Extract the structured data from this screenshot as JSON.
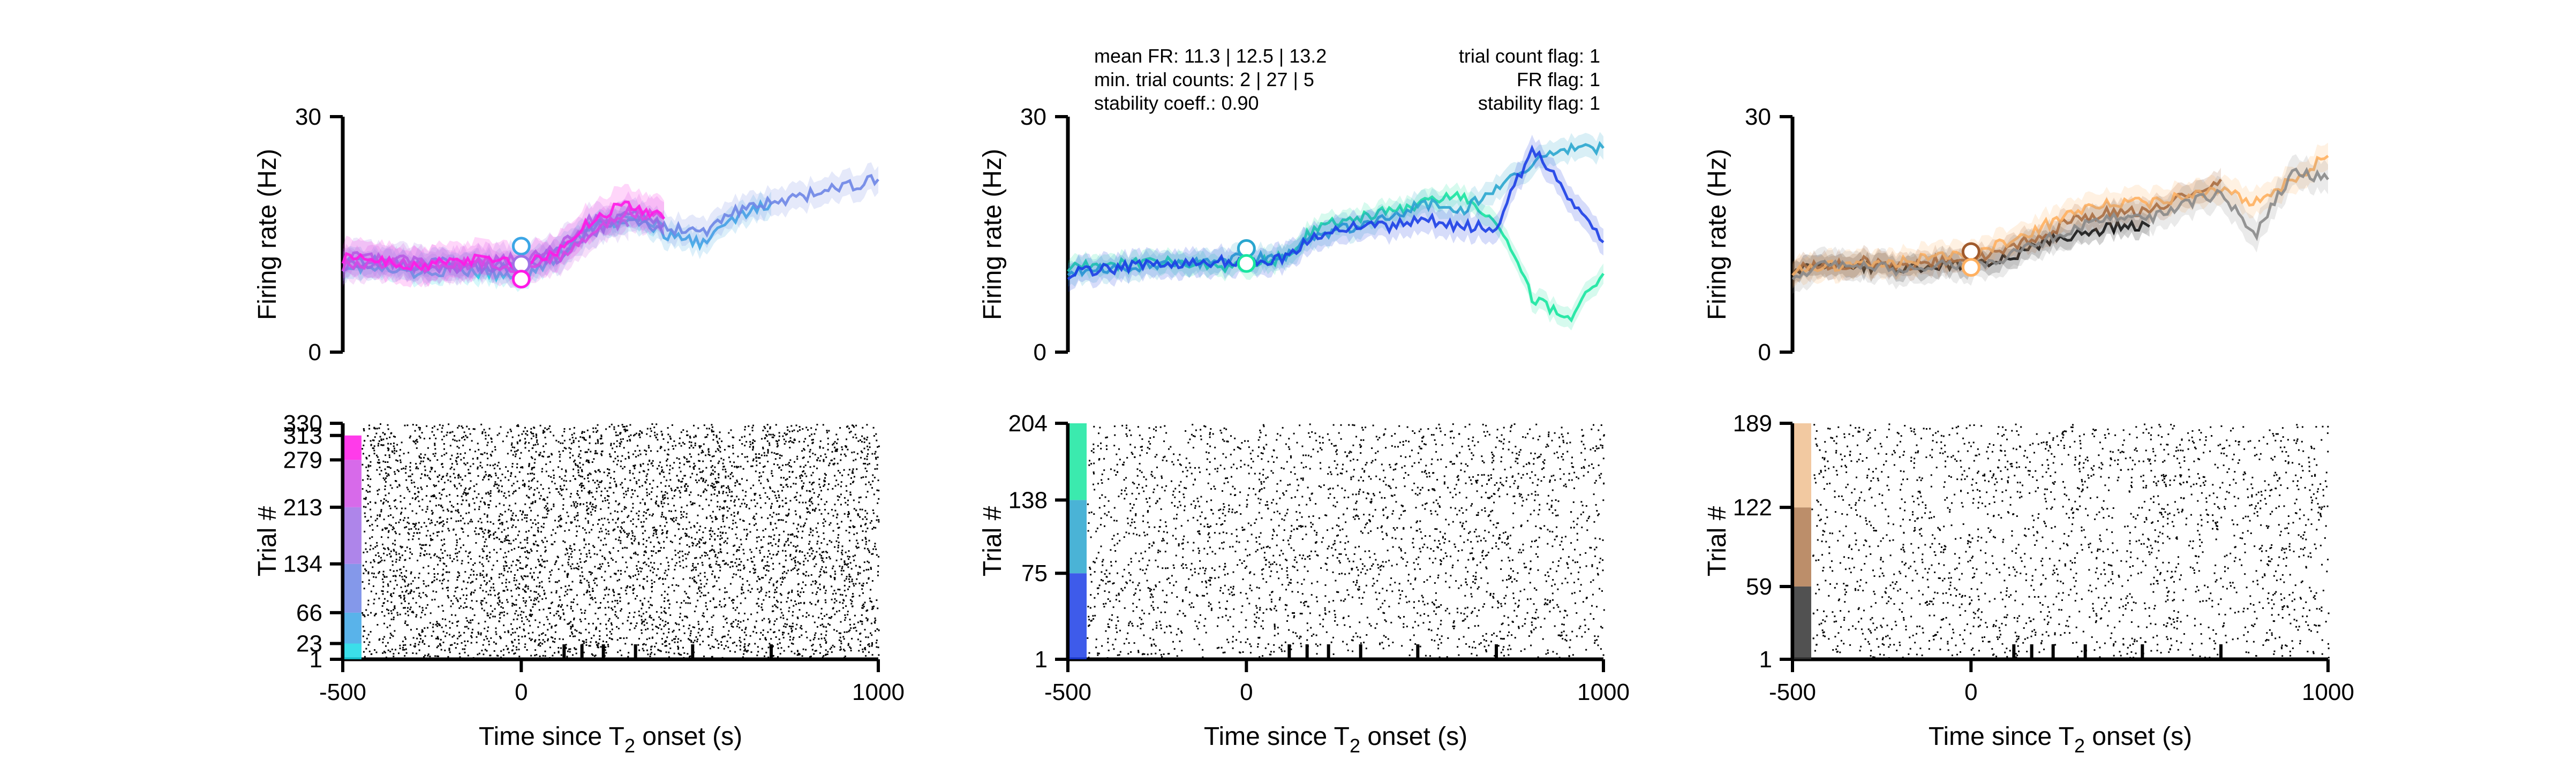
{
  "figure": {
    "panels": [
      {
        "id": "left",
        "top_ylabel": "Firing rate (Hz)",
        "bottom_ylabel": "Trial #",
        "xlabel_main": "Time since T",
        "xlabel_sub": "2",
        "xlabel_tail": " onset (s)"
      },
      {
        "id": "middle",
        "top_ylabel": "Firing rate (Hz)",
        "bottom_ylabel": "Trial #",
        "xlabel_main": "Time since T",
        "xlabel_sub": "2",
        "xlabel_tail": " onset (s)",
        "stats_left": [
          "mean FR: 11.3 | 12.5 | 13.2",
          "min. trial counts: 2 | 27 | 5",
          "stability coeff.: 0.90"
        ],
        "stats_right": [
          "trial count flag: 1",
          "FR flag: 1",
          "stability flag: 1"
        ]
      },
      {
        "id": "right",
        "top_ylabel": "Firing rate (Hz)",
        "bottom_ylabel": "Trial #",
        "xlabel_main": "Time since T",
        "xlabel_sub": "2",
        "xlabel_tail": " onset (s)"
      }
    ]
  },
  "chart_data": [
    {
      "type": "line",
      "panel": "left",
      "ylim": [
        0,
        30
      ],
      "xlim": [
        -500,
        1000
      ],
      "yticks": [
        "0",
        "30"
      ],
      "series": [
        {
          "color": "#19d9e6",
          "x": [
            -500,
            -400,
            -300,
            -200,
            -100,
            0,
            100,
            200,
            300,
            400
          ],
          "y": [
            11,
            10.5,
            10,
            10.5,
            10,
            9.5,
            12,
            16,
            17,
            16
          ]
        },
        {
          "color": "#3ca6e6",
          "x": [
            -500,
            -400,
            -300,
            -200,
            -100,
            0,
            100,
            200,
            300,
            400,
            500,
            600,
            700
          ],
          "y": [
            12,
            11.5,
            11,
            11.5,
            11,
            10.5,
            13,
            16,
            17,
            15,
            14,
            17,
            19
          ]
        },
        {
          "color": "#6e86e6",
          "x": [
            -500,
            -400,
            -300,
            -200,
            -100,
            0,
            100,
            200,
            300,
            400,
            500,
            600,
            700,
            800,
            900,
            1000
          ],
          "y": [
            11,
            11.5,
            11,
            10.5,
            11,
            11,
            12,
            15,
            18,
            16,
            15,
            18,
            19,
            20,
            21,
            22
          ]
        },
        {
          "color": "#a070e6",
          "x": [
            -500,
            -400,
            -300,
            -200,
            -100,
            0,
            100,
            200,
            300
          ],
          "y": [
            12,
            12,
            11.5,
            11,
            11.5,
            12,
            13,
            17,
            16
          ]
        },
        {
          "color": "#d050e6",
          "x": [
            -500,
            -400,
            -300,
            -200,
            -100,
            0,
            100,
            200,
            300,
            400
          ],
          "y": [
            11,
            11.5,
            11,
            11,
            11.5,
            10.5,
            12,
            15,
            18,
            17
          ]
        },
        {
          "color": "#ff19e6",
          "x": [
            -500,
            -400,
            -300,
            -200,
            -100,
            0,
            100,
            200,
            300,
            400
          ],
          "y": [
            12,
            12,
            11,
            11.5,
            12,
            11,
            13,
            17,
            19,
            17
          ]
        }
      ],
      "markers": [
        {
          "x": 0,
          "y": 13.5,
          "color": "#3ca6e6"
        },
        {
          "x": 0,
          "y": 11.2,
          "color": "#a070e6"
        },
        {
          "x": 0,
          "y": 9.3,
          "color": "#ff19e6"
        }
      ]
    },
    {
      "type": "scatter",
      "panel": "left",
      "ylim": [
        1,
        330
      ],
      "xlim": [
        -500,
        1000
      ],
      "yticks": [
        "1",
        "23",
        "66",
        "134",
        "213",
        "279",
        "313",
        "330"
      ],
      "xticks": [
        "-500",
        "0",
        "1000"
      ],
      "event_ticks": [
        120,
        170,
        230,
        320,
        480,
        700
      ],
      "raster_band_colors": [
        "#19d9e6",
        "#3ca6e6",
        "#6e86e6",
        "#a070e6",
        "#d050e6",
        "#ff19e6"
      ],
      "raster_band_bounds": [
        1,
        23,
        66,
        134,
        213,
        279,
        313,
        330
      ]
    },
    {
      "type": "line",
      "panel": "middle",
      "ylim": [
        0,
        30
      ],
      "xlim": [
        -500,
        1000
      ],
      "yticks": [
        "0",
        "30"
      ],
      "series": [
        {
          "color": "#19e6a0",
          "x": [
            -500,
            -400,
            -300,
            -200,
            -100,
            0,
            100,
            200,
            300,
            400,
            500,
            600,
            700,
            800,
            900,
            1000
          ],
          "y": [
            11,
            11,
            11.5,
            11.5,
            11,
            11,
            12,
            16,
            17,
            18,
            19,
            20,
            17,
            7,
            4,
            10
          ]
        },
        {
          "color": "#2aa6cf",
          "x": [
            -500,
            -400,
            -300,
            -200,
            -100,
            0,
            100,
            200,
            300,
            400,
            500,
            600,
            700,
            800,
            900,
            1000
          ],
          "y": [
            10.5,
            10.5,
            11,
            11,
            11.5,
            12,
            12,
            15,
            16,
            17,
            19,
            18,
            21,
            24,
            26,
            26
          ]
        },
        {
          "color": "#1c3ee6",
          "x": [
            -500,
            -400,
            -300,
            -200,
            -100,
            0,
            100,
            200,
            300,
            400,
            500,
            600,
            700,
            800,
            900,
            1000
          ],
          "y": [
            10,
            10.5,
            11,
            11,
            11.5,
            11.5,
            12,
            15,
            16,
            16,
            17,
            16,
            16,
            26,
            20,
            14
          ]
        }
      ],
      "markers": [
        {
          "x": 0,
          "y": 13.2,
          "color": "#2aa6cf"
        },
        {
          "x": 0,
          "y": 11.3,
          "color": "#19e6a0"
        }
      ]
    },
    {
      "type": "scatter",
      "panel": "middle",
      "ylim": [
        1,
        204
      ],
      "xlim": [
        -500,
        1000
      ],
      "yticks": [
        "1",
        "75",
        "138",
        "204"
      ],
      "xticks": [
        "-500",
        "0",
        "1000"
      ],
      "event_ticks": [
        120,
        170,
        230,
        320,
        480,
        700
      ],
      "raster_band_colors": [
        "#1c3ee6",
        "#2aa6cf",
        "#19e6a0"
      ],
      "raster_band_bounds": [
        1,
        75,
        138,
        204
      ]
    },
    {
      "type": "line",
      "panel": "right",
      "ylim": [
        0,
        30
      ],
      "xlim": [
        -500,
        1000
      ],
      "yticks": [
        "0",
        "30"
      ],
      "series": [
        {
          "color": "#000000",
          "x": [
            -500,
            -400,
            -300,
            -200,
            -100,
            0,
            100,
            200,
            300,
            400,
            500
          ],
          "y": [
            10.5,
            11,
            11,
            10.5,
            11,
            11,
            12,
            14,
            15,
            16,
            16
          ]
        },
        {
          "color": "#a05a2c",
          "x": [
            -500,
            -400,
            -300,
            -200,
            -100,
            0,
            100,
            200,
            300,
            400,
            500,
            600,
            700
          ],
          "y": [
            10.5,
            11,
            11.5,
            11,
            11.5,
            12,
            13,
            15,
            17,
            18,
            18,
            20,
            22
          ]
        },
        {
          "color": "#ffb060",
          "x": [
            -500,
            -400,
            -300,
            -200,
            -100,
            0,
            100,
            200,
            300,
            400,
            500,
            600,
            700,
            800,
            900,
            1000
          ],
          "y": [
            10.5,
            11,
            11,
            11.5,
            12,
            12.5,
            14,
            16,
            18,
            19,
            19,
            20,
            21,
            19,
            22,
            25
          ]
        },
        {
          "color": "#8a8a8a",
          "x": [
            -500,
            -400,
            -300,
            -200,
            -100,
            0,
            100,
            200,
            300,
            400,
            500,
            600,
            700,
            800,
            900,
            1000
          ],
          "y": [
            10,
            11,
            11,
            10.5,
            11,
            11,
            12,
            14,
            16,
            17,
            17,
            19,
            20,
            15,
            23,
            22
          ]
        }
      ],
      "markers": [
        {
          "x": 0,
          "y": 12.8,
          "color": "#a05a2c"
        },
        {
          "x": 0,
          "y": 10.8,
          "color": "#ffb060"
        }
      ]
    },
    {
      "type": "scatter",
      "panel": "right",
      "ylim": [
        1,
        189
      ],
      "xlim": [
        -500,
        1000
      ],
      "yticks": [
        "1",
        "59",
        "122",
        "189"
      ],
      "xticks": [
        "-500",
        "0",
        "1000"
      ],
      "event_ticks": [
        120,
        170,
        230,
        320,
        480,
        700
      ],
      "raster_band_colors": [
        "#333333",
        "#b07a50",
        "#f0c090"
      ],
      "raster_band_bounds": [
        1,
        59,
        122,
        189
      ]
    }
  ]
}
